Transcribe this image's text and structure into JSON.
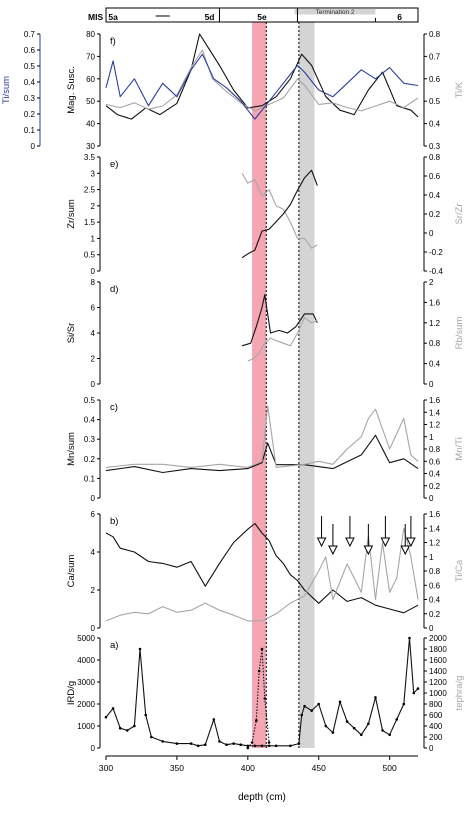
{
  "figure": {
    "x_axis": {
      "label": "depth (cm)",
      "range": [
        300,
        520
      ],
      "ticks": [
        300,
        350,
        400,
        450,
        500
      ]
    },
    "highlight_bands": [
      {
        "name": "5e-red-band",
        "from": 403,
        "to": 413,
        "color": "#f4a7b2"
      },
      {
        "name": "termination-grey-band",
        "from": 436,
        "to": 447,
        "color": "#d4d4d4"
      }
    ],
    "dashed_lines": [
      413,
      436
    ],
    "mis_bar": {
      "mis_label": "MIS",
      "stages": [
        {
          "label": "5a",
          "at": 305
        },
        {
          "label": "5d",
          "at": 373
        },
        {
          "label": "5e",
          "at": 410
        },
        {
          "label": "6",
          "at": 507
        }
      ],
      "dividers": [
        380,
        435
      ],
      "short_ticks": [
        490
      ],
      "termination": {
        "label": "Termination 2",
        "from": 433,
        "to": 490
      },
      "dash_marker": {
        "from": 335,
        "to": 345
      }
    },
    "colors": {
      "black": "#111111",
      "grey": "#a6a6a6",
      "blue": "#2b3f9a",
      "band_red": "#f4a7b2",
      "band_grey": "#d4d4d4"
    }
  },
  "chart_data": [
    {
      "type": "line",
      "panel": "f)",
      "y_left": {
        "label": "Mag. Susc.",
        "range": [
          30,
          80
        ],
        "ticks": [
          30,
          40,
          50,
          60,
          70,
          80
        ]
      },
      "y_left2": {
        "label": "Ti/sum",
        "range": [
          0,
          0.7
        ],
        "ticks": [
          0,
          0.1,
          0.2,
          0.3,
          0.4,
          0.5,
          0.6,
          0.7
        ]
      },
      "y_right": {
        "label": "Ti/K",
        "range": [
          0.3,
          0.8
        ],
        "ticks": [
          0.3,
          0.4,
          0.5,
          0.6,
          0.7,
          0.8
        ]
      },
      "series": [
        {
          "axis": "left",
          "color": "black",
          "x": [
            300,
            308,
            318,
            328,
            338,
            350,
            360,
            366,
            372,
            380,
            390,
            400,
            410,
            420,
            430,
            438,
            445,
            455,
            465,
            475,
            485,
            495,
            505,
            515,
            520
          ],
          "y": [
            48,
            44,
            42,
            47,
            44,
            49,
            64,
            80,
            74,
            66,
            55,
            47,
            48,
            52,
            60,
            71,
            66,
            52,
            46,
            44,
            55,
            63,
            48,
            46,
            43
          ]
        },
        {
          "axis": "left2",
          "color": "grey",
          "x": [
            300,
            310,
            320,
            330,
            340,
            350,
            360,
            368,
            375,
            385,
            395,
            405,
            415,
            425,
            435,
            440,
            450,
            460,
            470,
            480,
            490,
            500,
            510,
            520
          ],
          "y": [
            0.26,
            0.24,
            0.27,
            0.23,
            0.25,
            0.32,
            0.49,
            0.6,
            0.42,
            0.34,
            0.27,
            0.22,
            0.26,
            0.3,
            0.42,
            0.38,
            0.26,
            0.27,
            0.24,
            0.22,
            0.25,
            0.28,
            0.24,
            0.3
          ]
        },
        {
          "axis": "right",
          "color": "blue",
          "x": [
            300,
            305,
            310,
            320,
            330,
            340,
            350,
            360,
            368,
            376,
            385,
            395,
            405,
            415,
            425,
            435,
            440,
            450,
            460,
            470,
            480,
            490,
            500,
            510,
            520
          ],
          "y": [
            0.56,
            0.68,
            0.52,
            0.6,
            0.48,
            0.58,
            0.52,
            0.64,
            0.71,
            0.6,
            0.56,
            0.5,
            0.42,
            0.5,
            0.58,
            0.66,
            0.63,
            0.55,
            0.52,
            0.58,
            0.64,
            0.6,
            0.65,
            0.58,
            0.57
          ]
        }
      ]
    },
    {
      "type": "line",
      "panel": "e)",
      "y_left": {
        "label": "Zr/sum",
        "range": [
          0,
          3.5
        ],
        "ticks": [
          0,
          0.5,
          1,
          1.5,
          2,
          2.5,
          3,
          3.5
        ]
      },
      "y_right": {
        "label": "Sr/Zr",
        "range": [
          -0.4,
          0.8
        ],
        "ticks": [
          -0.4,
          -0.2,
          0,
          0.2,
          0.4,
          0.6,
          0.8
        ]
      },
      "series": [
        {
          "axis": "left",
          "color": "grey",
          "x": [
            396,
            400,
            405,
            410,
            415,
            420,
            425,
            430,
            435,
            440,
            445,
            449
          ],
          "y": [
            3.0,
            2.7,
            2.8,
            2.3,
            2.5,
            2.0,
            1.9,
            1.5,
            1.0,
            1.0,
            0.7,
            0.8
          ]
        },
        {
          "axis": "right",
          "color": "black",
          "x": [
            396,
            400,
            405,
            410,
            415,
            420,
            425,
            430,
            435,
            440,
            445,
            449
          ],
          "y": [
            -0.26,
            -0.22,
            -0.18,
            0.02,
            0.04,
            0.12,
            0.2,
            0.3,
            0.45,
            0.58,
            0.66,
            0.5
          ]
        }
      ]
    },
    {
      "type": "line",
      "panel": "d)",
      "y_left": {
        "label": "Si/Sr",
        "range": [
          0,
          8
        ],
        "ticks": [
          0,
          2,
          4,
          6,
          8
        ]
      },
      "y_right": {
        "label": "Rb/sum",
        "range": [
          0,
          2
        ],
        "ticks": [
          0,
          0.4,
          0.8,
          1.2,
          1.6,
          2
        ]
      },
      "series": [
        {
          "axis": "left",
          "color": "black",
          "x": [
            396,
            402,
            406,
            410,
            412,
            416,
            422,
            428,
            434,
            440,
            446,
            449
          ],
          "y": [
            3.0,
            3.2,
            4.5,
            6.0,
            7.0,
            4.0,
            4.2,
            4.0,
            4.5,
            5.5,
            5.5,
            4.8
          ]
        },
        {
          "axis": "right",
          "color": "grey",
          "x": [
            400,
            404,
            408,
            412,
            416,
            420,
            425,
            430,
            435,
            440,
            445,
            449
          ],
          "y": [
            0.45,
            0.5,
            0.6,
            0.8,
            0.9,
            0.85,
            0.8,
            0.75,
            1.0,
            1.3,
            1.2,
            1.25
          ]
        }
      ]
    },
    {
      "type": "line",
      "panel": "c)",
      "y_left": {
        "label": "Mn/sum",
        "range": [
          0,
          0.5
        ],
        "ticks": [
          0,
          0.1,
          0.2,
          0.3,
          0.4,
          0.5
        ]
      },
      "y_right": {
        "label": "Mn/Ti",
        "range": [
          0,
          1.6
        ],
        "ticks": [
          0,
          0.2,
          0.4,
          0.6,
          0.8,
          1,
          1.2,
          1.4,
          1.6
        ]
      },
      "series": [
        {
          "axis": "left",
          "color": "black",
          "x": [
            300,
            320,
            340,
            360,
            380,
            400,
            410,
            414,
            420,
            440,
            460,
            480,
            490,
            500,
            510,
            520
          ],
          "y": [
            0.14,
            0.16,
            0.13,
            0.15,
            0.14,
            0.15,
            0.18,
            0.28,
            0.17,
            0.17,
            0.15,
            0.22,
            0.32,
            0.18,
            0.2,
            0.15
          ]
        },
        {
          "axis": "right",
          "color": "grey",
          "x": [
            300,
            320,
            340,
            360,
            380,
            400,
            410,
            414,
            420,
            440,
            450,
            460,
            470,
            480,
            485,
            490,
            500,
            510,
            515,
            520
          ],
          "y": [
            0.5,
            0.55,
            0.55,
            0.5,
            0.55,
            0.5,
            0.6,
            1.5,
            0.5,
            0.55,
            0.6,
            0.55,
            0.8,
            1.0,
            1.3,
            1.45,
            0.8,
            1.3,
            0.7,
            0.6
          ]
        }
      ]
    },
    {
      "type": "line",
      "panel": "b)",
      "y_left": {
        "label": "Ca/sum",
        "range": [
          0,
          6
        ],
        "ticks": [
          0,
          2,
          4,
          6
        ]
      },
      "y_right": {
        "label": "Ti/Ca",
        "range": [
          0,
          1.6
        ],
        "ticks": [
          0,
          0.2,
          0.4,
          0.6,
          0.8,
          1,
          1.2,
          1.4,
          1.6
        ]
      },
      "series": [
        {
          "axis": "left",
          "color": "black",
          "x": [
            300,
            305,
            310,
            320,
            330,
            340,
            350,
            360,
            370,
            380,
            390,
            400,
            405,
            410,
            415,
            420,
            425,
            430,
            435,
            440,
            450,
            460,
            470,
            480,
            490,
            500,
            510,
            520
          ],
          "y": [
            5.0,
            4.8,
            4.2,
            4.0,
            3.5,
            3.4,
            3.2,
            3.5,
            2.2,
            3.4,
            4.5,
            5.2,
            5.5,
            5.0,
            4.6,
            3.8,
            3.4,
            2.8,
            2.5,
            2.0,
            1.3,
            2.0,
            1.4,
            1.6,
            1.2,
            1.0,
            0.8,
            1.2
          ]
        },
        {
          "axis": "right",
          "color": "grey",
          "x": [
            300,
            310,
            320,
            330,
            340,
            350,
            360,
            370,
            380,
            390,
            400,
            410,
            420,
            430,
            440,
            450,
            455,
            460,
            470,
            480,
            485,
            490,
            495,
            500,
            505,
            510,
            515,
            520
          ],
          "y": [
            0.1,
            0.18,
            0.22,
            0.2,
            0.3,
            0.22,
            0.25,
            0.35,
            0.25,
            0.18,
            0.1,
            0.1,
            0.2,
            0.35,
            0.45,
            0.8,
            1.0,
            0.4,
            0.9,
            0.5,
            1.3,
            0.4,
            1.2,
            0.5,
            0.7,
            1.4,
            1.0,
            0.4
          ]
        }
      ],
      "arrows": [
        452,
        460,
        472,
        485,
        497,
        511,
        515
      ]
    },
    {
      "type": "line",
      "panel": "a)",
      "y_left": {
        "label": "IRD/g",
        "range": [
          0,
          5000
        ],
        "ticks": [
          0,
          1000,
          2000,
          3000,
          4000,
          5000
        ]
      },
      "y_right": {
        "label": "tephra/g",
        "range": [
          0,
          2000
        ],
        "ticks": [
          0,
          200,
          400,
          600,
          800,
          1000,
          1200,
          1400,
          1600,
          1800,
          2000
        ]
      },
      "series": [
        {
          "axis": "left",
          "color": "black",
          "x": [
            300,
            305,
            310,
            315,
            320,
            324,
            328,
            332,
            340,
            350,
            360,
            365,
            370,
            376,
            380,
            385,
            390,
            395,
            400,
            405,
            410,
            415,
            420,
            430,
            436,
            438,
            440,
            445,
            450,
            455,
            460,
            465,
            470,
            475,
            480,
            485,
            490,
            495,
            500,
            505,
            510,
            514,
            517,
            520
          ],
          "y": [
            1400,
            1800,
            900,
            800,
            1000,
            4500,
            1500,
            500,
            300,
            200,
            200,
            100,
            150,
            1300,
            300,
            150,
            200,
            150,
            100,
            100,
            100,
            100,
            100,
            100,
            200,
            1500,
            1900,
            1700,
            2000,
            1000,
            700,
            2100,
            1200,
            900,
            600,
            1100,
            2300,
            800,
            600,
            1300,
            2000,
            5000,
            2500,
            2700
          ]
        },
        {
          "axis": "right",
          "color": "black",
          "style": "dotted",
          "x": [
            400,
            403,
            406,
            408,
            410,
            412,
            415
          ],
          "y": [
            0,
            100,
            500,
            1400,
            1800,
            900,
            100
          ]
        }
      ]
    }
  ]
}
